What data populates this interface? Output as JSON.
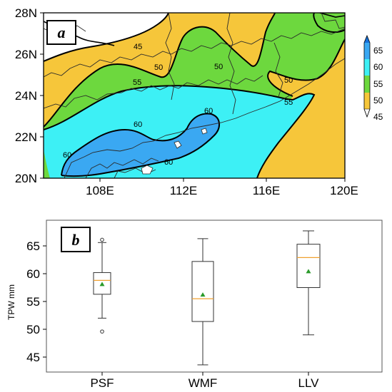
{
  "colors": {
    "c45": "#ffffff",
    "c45_50": "#f6c63a",
    "c50_55": "#6dd83e",
    "c55_60": "#3df0f5",
    "c60_65": "#3aa8f2",
    "c65": "#1670d8"
  },
  "chart_data": [
    {
      "type": "heatmap",
      "panel_label": "a",
      "lat_ticks": [
        "20N",
        "22N",
        "24N",
        "26N",
        "28N"
      ],
      "lon_ticks": [
        "108E",
        "112E",
        "116E",
        "120E"
      ],
      "xlim": [
        104.5,
        120
      ],
      "ylim": [
        20,
        28
      ],
      "colorbar_levels": [
        "65",
        "60",
        "55",
        "50",
        "45"
      ],
      "contour_labels": [
        "45",
        "50",
        "50",
        "50",
        "55",
        "55",
        "60",
        "60",
        "60",
        "60"
      ]
    },
    {
      "type": "box",
      "panel_label": "b",
      "ylabel": "TPW mm",
      "categories": [
        "PSF",
        "WMF",
        "LLV"
      ],
      "ylim": [
        42.5,
        68
      ],
      "yticks": [
        "45",
        "50",
        "55",
        "60",
        "65"
      ],
      "boxes": [
        {
          "name": "PSF",
          "whisker_low": 52.0,
          "q1": 56.3,
          "median": 58.8,
          "mean": 58.1,
          "q3": 60.2,
          "whisker_high": 65.6,
          "outliers": [
            66.1,
            49.6
          ]
        },
        {
          "name": "WMF",
          "whisker_low": 43.6,
          "q1": 51.4,
          "median": 55.5,
          "mean": 56.2,
          "q3": 62.2,
          "whisker_high": 66.3,
          "outliers": []
        },
        {
          "name": "LLV",
          "whisker_low": 49.0,
          "q1": 57.5,
          "median": 62.9,
          "mean": 60.4,
          "q3": 65.3,
          "whisker_high": 67.7,
          "outliers": []
        }
      ]
    }
  ]
}
